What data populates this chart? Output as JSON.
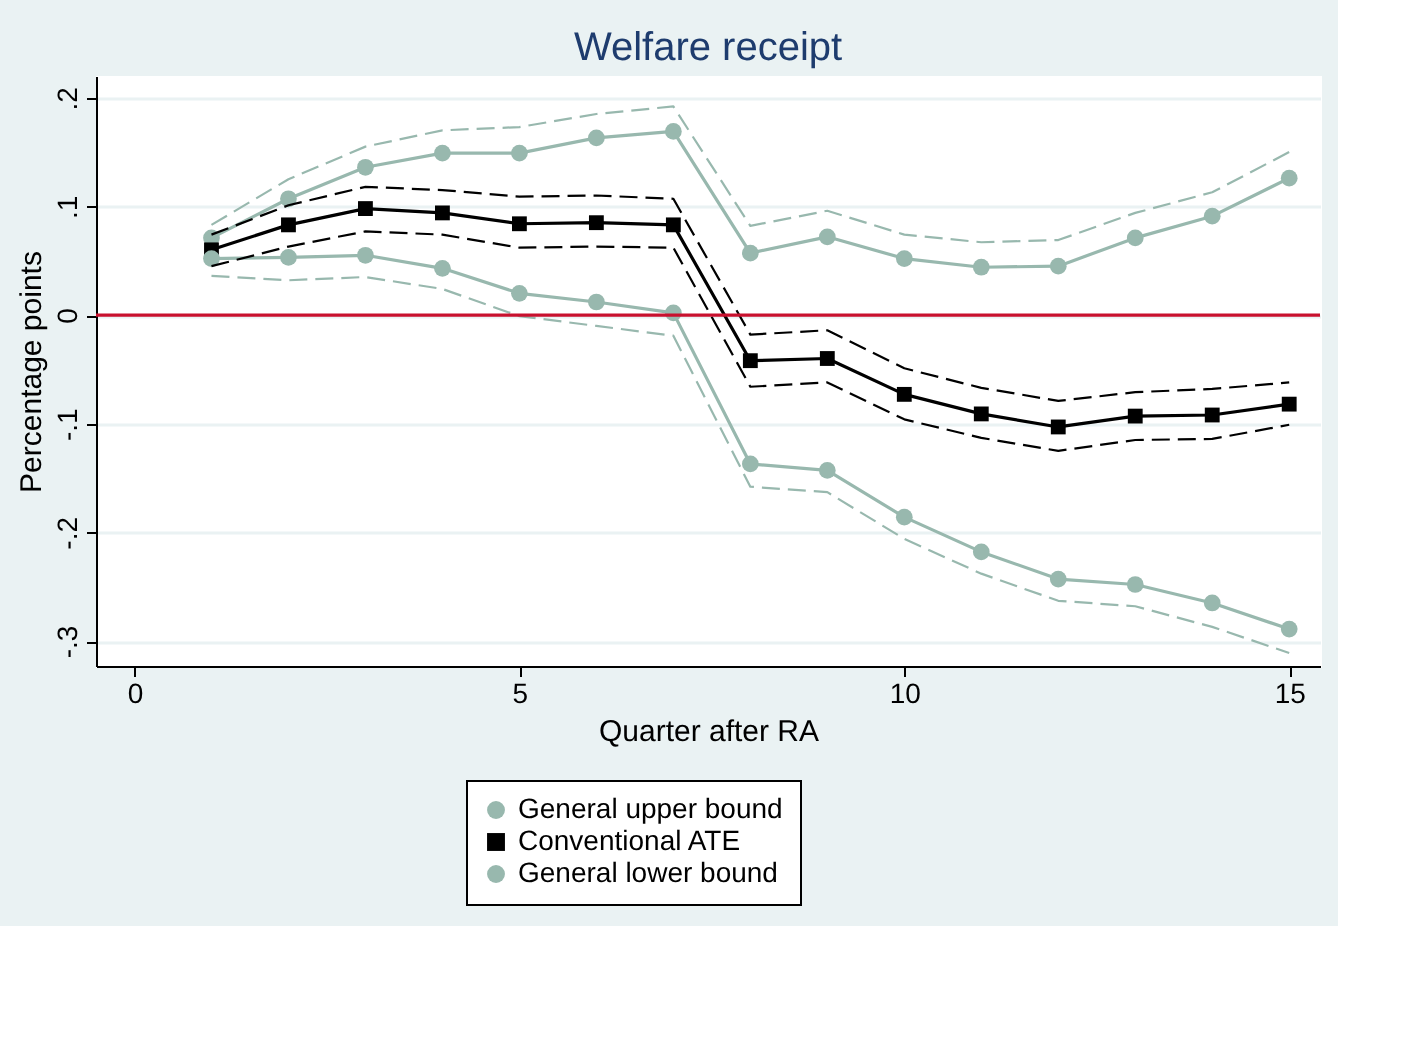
{
  "chart_data": {
    "type": "line",
    "title": "Welfare receipt",
    "xlabel": "Quarter after RA",
    "ylabel": "Percentage points",
    "x": [
      1,
      2,
      3,
      4,
      5,
      6,
      7,
      8,
      9,
      10,
      11,
      12,
      13,
      14,
      15
    ],
    "series": [
      {
        "name": "General upper bound",
        "color": "#98b8ae",
        "marker": "circle",
        "line_style": "solid",
        "values": [
          0.071,
          0.107,
          0.136,
          0.149,
          0.149,
          0.163,
          0.169,
          0.057,
          0.072,
          0.052,
          0.044,
          0.045,
          0.071,
          0.091,
          0.126
        ]
      },
      {
        "name": "Conventional ATE",
        "color": "#000000",
        "marker": "square",
        "line_style": "solid",
        "values": [
          0.06,
          0.083,
          0.098,
          0.094,
          0.084,
          0.085,
          0.083,
          -0.042,
          -0.04,
          -0.073,
          -0.091,
          -0.103,
          -0.093,
          -0.092,
          -0.082
        ]
      },
      {
        "name": "General lower bound",
        "color": "#98b8ae",
        "marker": "circle",
        "line_style": "solid",
        "values": [
          0.052,
          0.053,
          0.055,
          0.043,
          0.02,
          0.012,
          0.002,
          -0.137,
          -0.143,
          -0.186,
          -0.218,
          -0.243,
          -0.248,
          -0.265,
          -0.289
        ]
      },
      {
        "color": "#98b8ae",
        "marker": "none",
        "line_style": "dashed",
        "values": [
          0.083,
          0.125,
          0.155,
          0.17,
          0.173,
          0.185,
          0.192,
          0.082,
          0.096,
          0.074,
          0.067,
          0.069,
          0.094,
          0.113,
          0.15
        ]
      },
      {
        "color": "#98b8ae",
        "marker": "none",
        "line_style": "dashed",
        "values": [
          0.036,
          0.032,
          0.035,
          0.024,
          -0.001,
          -0.01,
          -0.019,
          -0.158,
          -0.163,
          -0.206,
          -0.238,
          -0.263,
          -0.268,
          -0.287,
          -0.311
        ]
      },
      {
        "color": "#000000",
        "marker": "none",
        "line_style": "dashed",
        "values": [
          0.074,
          0.101,
          0.118,
          0.115,
          0.109,
          0.11,
          0.107,
          -0.018,
          -0.014,
          -0.049,
          -0.067,
          -0.079,
          -0.071,
          -0.068,
          -0.062
        ]
      },
      {
        "color": "#000000",
        "marker": "none",
        "line_style": "dashed",
        "values": [
          0.045,
          0.063,
          0.077,
          0.074,
          0.062,
          0.063,
          0.062,
          -0.066,
          -0.062,
          -0.096,
          -0.113,
          -0.125,
          -0.115,
          -0.114,
          -0.101
        ]
      }
    ],
    "xlim": [
      -0.5,
      15.4
    ],
    "xticks": [
      0,
      5,
      10,
      15
    ],
    "ylim": [
      -0.323,
      0.22
    ],
    "yticks": [
      {
        "value": -0.3,
        "label": "-.3"
      },
      {
        "value": -0.2,
        "label": "-.2"
      },
      {
        "value": -0.1,
        "label": "-.1"
      },
      0,
      {
        "value": 0.1,
        "label": ".1"
      },
      {
        "value": 0.2,
        "label": ".2"
      }
    ],
    "ref_lines": [
      {
        "axis": "y",
        "value": 0,
        "color": "#c8102e"
      }
    ],
    "grid": "y",
    "legend": "bottom"
  }
}
